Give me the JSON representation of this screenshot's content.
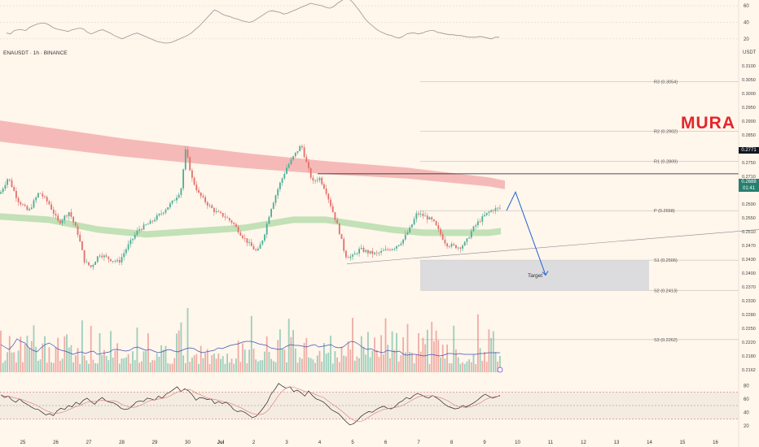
{
  "header": {
    "symbol_title": "ENAUSDT · 1h · BINANCE",
    "currency": "USDT"
  },
  "brand": {
    "watermark": "MURA",
    "color": "#e3262b"
  },
  "price_tags": {
    "resistance": "0.2771",
    "last": "0.2688",
    "countdown": "01:41"
  },
  "colors": {
    "bull": "#4cae95",
    "bear": "#e1706a",
    "volume_ma": "#3f51b5",
    "ema_fast": "#8fd08a",
    "ema_slow": "#f2a5a5",
    "projection": "#1e63d6",
    "target_zone": "#d6d6dc"
  },
  "chart_data": [
    {
      "type": "line",
      "panel": "top-oscillator",
      "y_ticks": [
        "60",
        "40",
        "20"
      ],
      "ylim": [
        10,
        65
      ],
      "values": [
        27,
        26,
        30,
        31,
        31,
        30,
        34,
        36,
        38,
        39,
        39,
        37,
        34,
        32,
        31,
        30,
        29,
        31,
        32,
        33,
        32,
        28,
        26,
        28,
        30,
        31,
        29,
        27,
        24,
        22,
        20,
        22,
        24,
        26,
        27,
        25,
        23,
        21,
        19,
        17,
        16,
        15,
        15,
        16,
        18,
        20,
        22,
        24,
        27,
        31,
        35,
        40,
        45,
        50,
        55,
        53,
        50,
        48,
        47,
        45,
        44,
        42,
        41,
        40,
        41,
        44,
        47,
        50,
        53,
        54,
        53,
        52,
        50,
        51,
        53,
        55,
        57,
        59,
        61,
        63,
        62,
        61,
        60,
        58,
        57,
        59,
        63,
        66,
        69,
        68,
        64,
        58,
        52,
        45,
        40,
        36,
        32,
        29,
        27,
        25,
        24,
        22,
        21,
        23,
        26,
        27,
        27,
        26,
        27,
        29,
        30,
        30,
        28,
        27,
        26,
        25,
        25,
        24,
        24,
        23,
        22,
        22,
        22,
        23,
        22,
        21,
        20,
        22,
        22
      ]
    },
    {
      "type": "candlestick",
      "panel": "price",
      "symbol": "ENAUSDT",
      "interval": "1h",
      "exchange": "BINANCE",
      "x_tick_labels": [
        "25",
        "26",
        "27",
        "28",
        "29",
        "30",
        "Jul",
        "2",
        "3",
        "4",
        "5",
        "6",
        "7",
        "8",
        "9",
        "10",
        "11",
        "12",
        "13",
        "14",
        "15",
        "16"
      ],
      "y_tick_labels": [
        "0.3100",
        "0.3050",
        "0.3000",
        "0.2950",
        "0.2900",
        "0.2850",
        "0.2800",
        "0.2750",
        "0.2710",
        "0.2630",
        "0.2590",
        "0.2550",
        "0.2510",
        "0.2470",
        "0.2430",
        "0.2400",
        "0.2370",
        "0.2330",
        "0.2280",
        "0.2250",
        "0.2220",
        "0.2180",
        "0.2162"
      ],
      "ylim": [
        0.2162,
        0.3125
      ],
      "close_path": [
        {
          "x": 0,
          "y": 0.271
        },
        {
          "x": 10,
          "y": 0.276
        },
        {
          "x": 22,
          "y": 0.269
        },
        {
          "x": 35,
          "y": 0.2655
        },
        {
          "x": 48,
          "y": 0.2715
        },
        {
          "x": 60,
          "y": 0.268
        },
        {
          "x": 72,
          "y": 0.262
        },
        {
          "x": 85,
          "y": 0.2655
        },
        {
          "x": 96,
          "y": 0.2585
        },
        {
          "x": 104,
          "y": 0.25
        },
        {
          "x": 112,
          "y": 0.2485
        },
        {
          "x": 122,
          "y": 0.2525
        },
        {
          "x": 134,
          "y": 0.251
        },
        {
          "x": 146,
          "y": 0.25
        },
        {
          "x": 156,
          "y": 0.2545
        },
        {
          "x": 170,
          "y": 0.26
        },
        {
          "x": 184,
          "y": 0.262
        },
        {
          "x": 198,
          "y": 0.265
        },
        {
          "x": 212,
          "y": 0.2685
        },
        {
          "x": 222,
          "y": 0.272
        },
        {
          "x": 228,
          "y": 0.2845
        },
        {
          "x": 236,
          "y": 0.2755
        },
        {
          "x": 244,
          "y": 0.271
        },
        {
          "x": 254,
          "y": 0.268
        },
        {
          "x": 264,
          "y": 0.2655
        },
        {
          "x": 276,
          "y": 0.264
        },
        {
          "x": 286,
          "y": 0.262
        },
        {
          "x": 296,
          "y": 0.2585
        },
        {
          "x": 306,
          "y": 0.2555
        },
        {
          "x": 316,
          "y": 0.253
        },
        {
          "x": 324,
          "y": 0.258
        },
        {
          "x": 332,
          "y": 0.266
        },
        {
          "x": 342,
          "y": 0.273
        },
        {
          "x": 352,
          "y": 0.279
        },
        {
          "x": 362,
          "y": 0.283
        },
        {
          "x": 370,
          "y": 0.286
        },
        {
          "x": 378,
          "y": 0.279
        },
        {
          "x": 384,
          "y": 0.2745
        },
        {
          "x": 392,
          "y": 0.276
        },
        {
          "x": 400,
          "y": 0.272
        },
        {
          "x": 408,
          "y": 0.266
        },
        {
          "x": 416,
          "y": 0.26
        },
        {
          "x": 424,
          "y": 0.252
        },
        {
          "x": 432,
          "y": 0.2515
        },
        {
          "x": 442,
          "y": 0.254
        },
        {
          "x": 452,
          "y": 0.253
        },
        {
          "x": 462,
          "y": 0.2525
        },
        {
          "x": 472,
          "y": 0.2535
        },
        {
          "x": 484,
          "y": 0.2545
        },
        {
          "x": 494,
          "y": 0.2565
        },
        {
          "x": 504,
          "y": 0.2605
        },
        {
          "x": 512,
          "y": 0.265
        },
        {
          "x": 522,
          "y": 0.264
        },
        {
          "x": 532,
          "y": 0.2625
        },
        {
          "x": 540,
          "y": 0.259
        },
        {
          "x": 548,
          "y": 0.2555
        },
        {
          "x": 556,
          "y": 0.255
        },
        {
          "x": 564,
          "y": 0.2545
        },
        {
          "x": 572,
          "y": 0.256
        },
        {
          "x": 580,
          "y": 0.26
        },
        {
          "x": 588,
          "y": 0.2625
        },
        {
          "x": 596,
          "y": 0.2645
        },
        {
          "x": 604,
          "y": 0.266
        },
        {
          "x": 612,
          "y": 0.2665
        }
      ],
      "ema_slow_path": [
        {
          "x": 0,
          "y": 0.2935
        },
        {
          "x": 150,
          "y": 0.288
        },
        {
          "x": 300,
          "y": 0.2835
        },
        {
          "x": 400,
          "y": 0.281
        },
        {
          "x": 500,
          "y": 0.279
        },
        {
          "x": 600,
          "y": 0.276
        },
        {
          "x": 620,
          "y": 0.275
        }
      ],
      "ema_fast_path": [
        {
          "x": 0,
          "y": 0.265
        },
        {
          "x": 60,
          "y": 0.264
        },
        {
          "x": 120,
          "y": 0.261
        },
        {
          "x": 180,
          "y": 0.2595
        },
        {
          "x": 240,
          "y": 0.2605
        },
        {
          "x": 300,
          "y": 0.2615
        },
        {
          "x": 360,
          "y": 0.264
        },
        {
          "x": 400,
          "y": 0.264
        },
        {
          "x": 440,
          "y": 0.2625
        },
        {
          "x": 480,
          "y": 0.261
        },
        {
          "x": 520,
          "y": 0.26
        },
        {
          "x": 560,
          "y": 0.26
        },
        {
          "x": 600,
          "y": 0.26
        },
        {
          "x": 615,
          "y": 0.2605
        }
      ],
      "pivot_levels": [
        {
          "label": "R3 (0.3054)",
          "value": 0.3054
        },
        {
          "label": "R2 (0.2902)",
          "value": 0.2902
        },
        {
          "label": "R1 (0.2809)",
          "value": 0.2809
        },
        {
          "label": "P (0.2658)",
          "value": 0.2658
        },
        {
          "label": "S1 (0.2506)",
          "value": 0.2506
        },
        {
          "label": "S2 (0.2413)",
          "value": 0.2413
        },
        {
          "label": "S3 (0.2262)",
          "value": 0.2262
        }
      ],
      "resistance_line": 0.2771,
      "support_trendline": [
        {
          "x": 426,
          "y": 0.2495
        },
        {
          "x": 932,
          "y": 0.26
        }
      ],
      "target_zone": {
        "label": "Target",
        "from": 0.2413,
        "to": 0.2506
      },
      "projection": [
        {
          "x": 622,
          "y": 0.2658
        },
        {
          "x": 633,
          "y": 0.2715
        },
        {
          "x": 670,
          "y": 0.246
        }
      ],
      "last_price": 0.2688
    },
    {
      "type": "bar",
      "panel": "volume",
      "values": [
        34,
        31,
        28,
        33,
        41,
        38,
        36,
        30,
        27,
        25,
        30,
        34,
        36,
        33,
        29,
        27,
        26,
        24,
        22,
        24,
        25,
        23,
        25,
        26,
        22,
        23,
        24,
        25,
        28,
        28,
        27,
        26,
        27,
        30,
        31,
        29,
        27,
        28,
        26,
        24,
        25,
        27,
        28,
        26,
        25,
        27,
        29,
        30,
        29,
        26,
        24,
        25,
        26,
        27,
        30,
        29,
        31,
        33,
        34,
        35,
        37,
        38,
        38,
        37,
        35,
        34,
        33,
        30,
        29,
        28,
        29,
        32,
        34,
        33,
        33,
        32,
        31,
        33,
        34,
        31,
        32,
        33,
        34,
        31,
        30,
        31,
        35,
        38,
        37,
        34,
        30,
        28,
        29,
        26,
        25,
        24,
        27,
        26,
        25,
        26,
        22,
        21,
        22,
        22,
        21,
        20,
        21,
        22,
        21,
        20,
        21,
        23,
        23,
        22,
        23,
        22,
        22,
        22,
        22,
        23,
        23,
        24,
        24,
        24,
        24
      ]
    },
    {
      "type": "line",
      "panel": "rsi",
      "y_ticks": [
        "80",
        "60",
        "40",
        "20"
      ],
      "ylim": [
        10,
        90
      ],
      "levels": [
        70,
        50,
        30
      ],
      "values": [
        66,
        62,
        64,
        58,
        55,
        60,
        55,
        52,
        48,
        45,
        44,
        40,
        36,
        38,
        35,
        42,
        46,
        44,
        50,
        48,
        55,
        52,
        58,
        61,
        56,
        52,
        58,
        62,
        57,
        55,
        54,
        51,
        46,
        44,
        45,
        49,
        55,
        57,
        56,
        61,
        60,
        58,
        64,
        61,
        67,
        70,
        74,
        78,
        71,
        75,
        72,
        66,
        58,
        62,
        61,
        59,
        60,
        53,
        56,
        53,
        55,
        51,
        44,
        41,
        42,
        40,
        36,
        32,
        34,
        40,
        47,
        55,
        67,
        74,
        83,
        79,
        76,
        78,
        71,
        73,
        69,
        64,
        72,
        65,
        60,
        58,
        55,
        50,
        44,
        41,
        38,
        32,
        26,
        21,
        23,
        28,
        34,
        38,
        41,
        40,
        44,
        47,
        49,
        46,
        45,
        48,
        54,
        57,
        62,
        60,
        65,
        68,
        66,
        63,
        61,
        65,
        62,
        58,
        53,
        49,
        47,
        45,
        46,
        50,
        48,
        51,
        54,
        58,
        63,
        67,
        64,
        61,
        63,
        65
      ]
    }
  ]
}
